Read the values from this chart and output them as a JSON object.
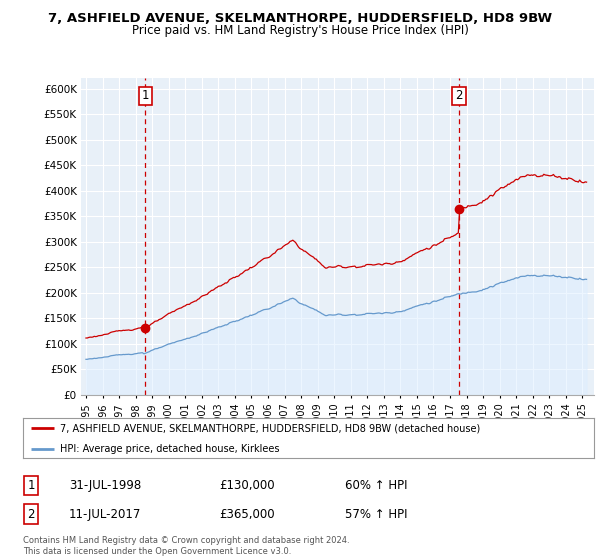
{
  "title": "7, ASHFIELD AVENUE, SKELMANTHORPE, HUDDERSFIELD, HD8 9BW",
  "subtitle": "Price paid vs. HM Land Registry's House Price Index (HPI)",
  "ylim": [
    0,
    620000
  ],
  "yticks": [
    0,
    50000,
    100000,
    150000,
    200000,
    250000,
    300000,
    350000,
    400000,
    450000,
    500000,
    550000,
    600000
  ],
  "ytick_labels": [
    "£0",
    "£50K",
    "£100K",
    "£150K",
    "£200K",
    "£250K",
    "£300K",
    "£350K",
    "£400K",
    "£450K",
    "£500K",
    "£550K",
    "£600K"
  ],
  "sale1_date": 1998.58,
  "sale1_price": 130000,
  "sale1_label": "1",
  "sale2_date": 2017.53,
  "sale2_price": 365000,
  "sale2_label": "2",
  "line_color_property": "#cc0000",
  "line_color_hpi": "#6699cc",
  "fill_color_hpi": "#ddeeff",
  "legend_property": "7, ASHFIELD AVENUE, SKELMANTHORPE, HUDDERSFIELD, HD8 9BW (detached house)",
  "legend_hpi": "HPI: Average price, detached house, Kirklees",
  "note1_label": "1",
  "note1_date": "31-JUL-1998",
  "note1_price": "£130,000",
  "note1_pct": "60% ↑ HPI",
  "note2_label": "2",
  "note2_date": "11-JUL-2017",
  "note2_price": "£365,000",
  "note2_pct": "57% ↑ HPI",
  "footer": "Contains HM Land Registry data © Crown copyright and database right 2024.\nThis data is licensed under the Open Government Licence v3.0.",
  "bg_color": "#ffffff",
  "plot_bg_color": "#e8f0f8",
  "grid_color": "#ffffff"
}
